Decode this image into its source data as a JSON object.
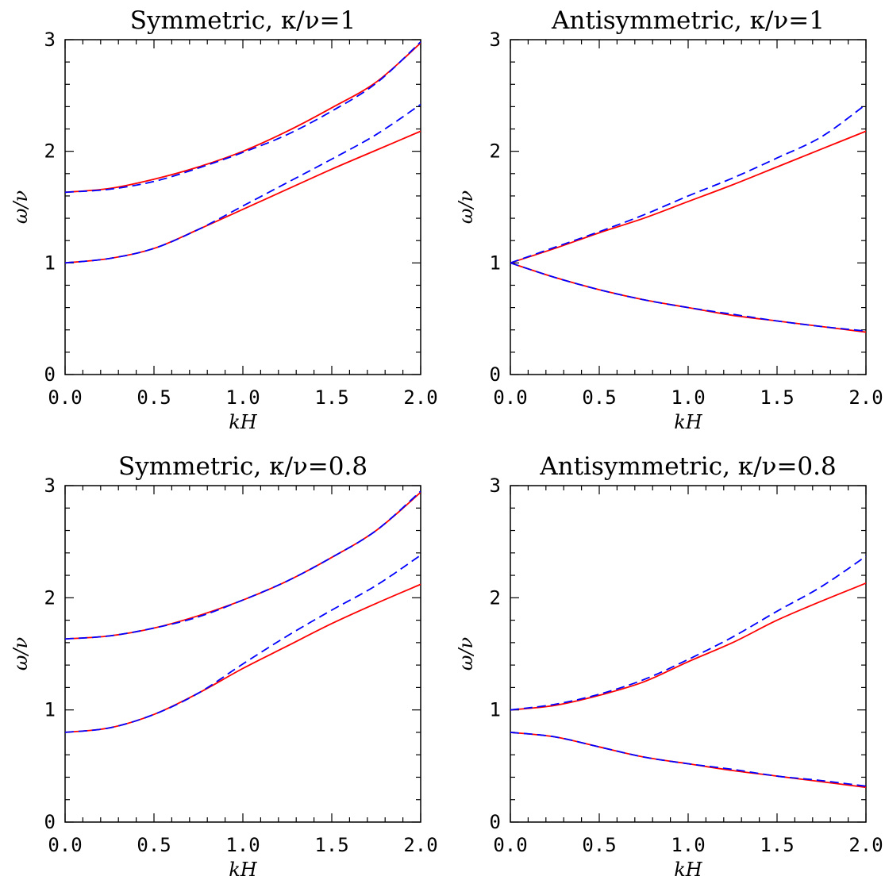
{
  "chart_data": [
    {
      "type": "line",
      "title": "Symmetric, κ/ν=1",
      "xlabel": "kH",
      "ylabel": "ω/ν",
      "xlim": [
        0,
        2.0
      ],
      "ylim": [
        0,
        3
      ],
      "xticks": [
        "0.0",
        "0.5",
        "1.0",
        "1.5",
        "2.0"
      ],
      "yticks": [
        "0",
        "1",
        "2",
        "3"
      ],
      "x": [
        0,
        0.25,
        0.5,
        0.75,
        1.0,
        1.25,
        1.5,
        1.75,
        2.0
      ],
      "series": [
        {
          "color": "#ff0000",
          "style": "solid",
          "values": [
            1.633,
            1.667,
            1.75,
            1.86,
            2.0,
            2.18,
            2.39,
            2.62,
            2.97
          ]
        },
        {
          "color": "#0000ff",
          "style": "dashed",
          "values": [
            1.633,
            1.66,
            1.73,
            1.85,
            1.99,
            2.15,
            2.36,
            2.61,
            2.98
          ]
        },
        {
          "color": "#ff0000",
          "style": "solid",
          "values": [
            1.0,
            1.04,
            1.13,
            1.3,
            1.48,
            1.66,
            1.84,
            2.01,
            2.18
          ]
        },
        {
          "color": "#0000ff",
          "style": "dashed",
          "values": [
            1.0,
            1.04,
            1.13,
            1.3,
            1.51,
            1.72,
            1.93,
            2.15,
            2.42
          ]
        }
      ]
    },
    {
      "type": "line",
      "title": "Antisymmetric, κ/ν=1",
      "xlabel": "kH",
      "ylabel": "ω/ν",
      "xlim": [
        0,
        2.0
      ],
      "ylim": [
        0,
        3
      ],
      "xticks": [
        "0.0",
        "0.5",
        "1.0",
        "1.5",
        "2.0"
      ],
      "yticks": [
        "0",
        "1",
        "2",
        "3"
      ],
      "x": [
        0,
        0.25,
        0.5,
        0.75,
        1.0,
        1.25,
        1.5,
        1.75,
        2.0
      ],
      "series": [
        {
          "color": "#ff0000",
          "style": "solid",
          "values": [
            1.0,
            1.13,
            1.27,
            1.4,
            1.55,
            1.7,
            1.86,
            2.02,
            2.18
          ]
        },
        {
          "color": "#0000ff",
          "style": "dashed",
          "values": [
            1.0,
            1.14,
            1.28,
            1.43,
            1.6,
            1.76,
            1.94,
            2.13,
            2.42
          ]
        },
        {
          "color": "#ff0000",
          "style": "solid",
          "values": [
            1.0,
            0.87,
            0.76,
            0.67,
            0.6,
            0.53,
            0.48,
            0.43,
            0.38
          ]
        },
        {
          "color": "#0000ff",
          "style": "dashed",
          "values": [
            1.0,
            0.87,
            0.76,
            0.67,
            0.6,
            0.54,
            0.48,
            0.43,
            0.39
          ]
        }
      ]
    },
    {
      "type": "line",
      "title": "Symmetric, κ/ν=0.8",
      "xlabel": "kH",
      "ylabel": "ω/ν",
      "xlim": [
        0,
        2.0
      ],
      "ylim": [
        0,
        3
      ],
      "xticks": [
        "0.0",
        "0.5",
        "1.0",
        "1.5",
        "2.0"
      ],
      "yticks": [
        "0",
        "1",
        "2",
        "3"
      ],
      "x": [
        0,
        0.25,
        0.5,
        0.75,
        1.0,
        1.25,
        1.5,
        1.75,
        2.0
      ],
      "series": [
        {
          "color": "#ff0000",
          "style": "solid",
          "values": [
            1.633,
            1.66,
            1.73,
            1.84,
            1.98,
            2.15,
            2.36,
            2.6,
            2.94
          ]
        },
        {
          "color": "#0000ff",
          "style": "dashed",
          "values": [
            1.633,
            1.66,
            1.73,
            1.83,
            1.98,
            2.15,
            2.36,
            2.6,
            2.95
          ]
        },
        {
          "color": "#ff0000",
          "style": "solid",
          "values": [
            0.8,
            0.84,
            0.96,
            1.15,
            1.37,
            1.57,
            1.77,
            1.95,
            2.12
          ]
        },
        {
          "color": "#0000ff",
          "style": "dashed",
          "values": [
            0.8,
            0.84,
            0.96,
            1.15,
            1.41,
            1.66,
            1.89,
            2.11,
            2.38
          ]
        }
      ]
    },
    {
      "type": "line",
      "title": "Antisymmetric, κ/ν=0.8",
      "xlabel": "kH",
      "ylabel": "ω/ν",
      "xlim": [
        0,
        2.0
      ],
      "ylim": [
        0,
        3
      ],
      "xticks": [
        "0.0",
        "0.5",
        "1.0",
        "1.5",
        "2.0"
      ],
      "yticks": [
        "0",
        "1",
        "2",
        "3"
      ],
      "x": [
        0,
        0.25,
        0.5,
        0.75,
        1.0,
        1.25,
        1.5,
        1.75,
        2.0
      ],
      "series": [
        {
          "color": "#ff0000",
          "style": "solid",
          "values": [
            1.0,
            1.04,
            1.13,
            1.25,
            1.43,
            1.6,
            1.8,
            1.97,
            2.13
          ]
        },
        {
          "color": "#0000ff",
          "style": "dashed",
          "values": [
            1.0,
            1.05,
            1.14,
            1.27,
            1.45,
            1.65,
            1.88,
            2.1,
            2.37
          ]
        },
        {
          "color": "#ff0000",
          "style": "solid",
          "values": [
            0.8,
            0.76,
            0.67,
            0.58,
            0.52,
            0.46,
            0.41,
            0.36,
            0.31
          ]
        },
        {
          "color": "#0000ff",
          "style": "dashed",
          "values": [
            0.8,
            0.76,
            0.67,
            0.58,
            0.52,
            0.47,
            0.41,
            0.37,
            0.32
          ]
        }
      ]
    }
  ]
}
